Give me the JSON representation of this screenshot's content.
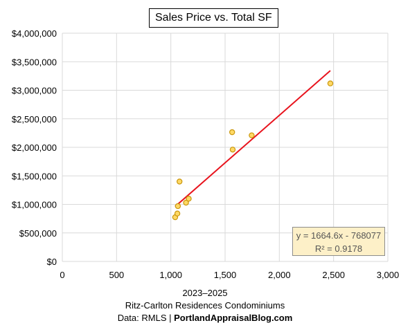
{
  "chart_data": {
    "type": "scatter",
    "title": "Sales Price vs. Total SF",
    "xlim": [
      0,
      3000
    ],
    "ylim": [
      0,
      4000000
    ],
    "x_ticks": [
      0,
      500,
      1000,
      1500,
      2000,
      2500,
      3000
    ],
    "x_tick_labels": [
      "0",
      "500",
      "1,000",
      "1,500",
      "2,000",
      "2,500",
      "3,000"
    ],
    "y_ticks": [
      0,
      500000,
      1000000,
      1500000,
      2000000,
      2500000,
      3000000,
      3500000,
      4000000
    ],
    "y_tick_labels": [
      "$0",
      "$500,000",
      "$1,000,000",
      "$1,500,000",
      "$2,000,000",
      "$2,500,000",
      "$3,000,000",
      "$3,500,000",
      "$4,000,000"
    ],
    "grid": true,
    "points": [
      {
        "x": 1040,
        "y": 775000
      },
      {
        "x": 1060,
        "y": 840000
      },
      {
        "x": 1065,
        "y": 970000
      },
      {
        "x": 1080,
        "y": 1400000
      },
      {
        "x": 1140,
        "y": 1030000
      },
      {
        "x": 1165,
        "y": 1100000
      },
      {
        "x": 1565,
        "y": 2265000
      },
      {
        "x": 1570,
        "y": 1960000
      },
      {
        "x": 1745,
        "y": 2210000
      },
      {
        "x": 2470,
        "y": 3120000
      }
    ],
    "trendline": {
      "slope": 1664.6,
      "intercept": -768077,
      "x_range": [
        1040,
        2470
      ],
      "color": "#e8131d"
    },
    "marker_fill": "#ffd966",
    "marker_stroke": "#c9960c",
    "equation_text": "y = 1664.6x - 768077",
    "r2_text": "R² = 0.9178"
  },
  "captions": {
    "line1": "2023–2025",
    "line2": "Ritz-Carlton Residences Condominiums",
    "line3_prefix": "Data: RMLS | ",
    "line3_bold": "PortlandAppraisalBlog.com"
  }
}
